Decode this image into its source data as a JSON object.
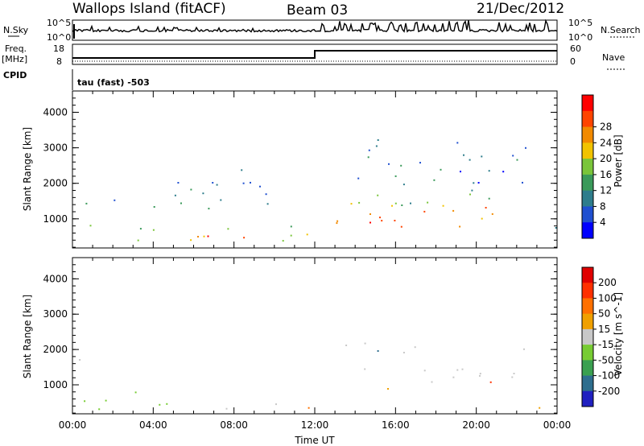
{
  "header": {
    "station": "Wallops Island (fitACF)",
    "beam": "Beam 03",
    "date": "21/Dec/2012"
  },
  "top_panels": {
    "nsky_label": "N.Sky",
    "nsky_ticks": [
      "10^5",
      "10^0"
    ],
    "nsearch_label": "N.Search",
    "nsearch_ticks": [
      "10^5",
      "10^0"
    ],
    "freq_label": "Freq.",
    "freq_unit": "[MHz]",
    "freq_ticks": [
      "18",
      "8"
    ],
    "nave_label": "Nave",
    "nave_ticks": [
      "60",
      "0"
    ],
    "cpid_label": "CPID",
    "cpid_value": "tau (fast) -503"
  },
  "chart_data": [
    {
      "type": "heatmap",
      "name": "power",
      "ylabel": "Slant Range [km]",
      "xlabel": "Time UT",
      "x_ticks": [
        "00:00",
        "04:00",
        "08:00",
        "12:00",
        "16:00",
        "20:00",
        "00:00"
      ],
      "xlim_hours": [
        0,
        24
      ],
      "ylim_km": [
        180,
        4600
      ],
      "y_ticks": [
        1000,
        2000,
        3000,
        4000
      ],
      "colorbar": {
        "label": "Power [dB]",
        "ticks": [
          4,
          8,
          12,
          16,
          20,
          24,
          28
        ],
        "colors": [
          "#0000ff",
          "#2050d0",
          "#2e7d8c",
          "#3a9a5a",
          "#7ac53a",
          "#f2c300",
          "#f28a00",
          "#ff4400",
          "#ff0000"
        ]
      },
      "regions": [
        {
          "t0": 0.0,
          "t1": 1.0,
          "r0": 1300,
          "r1": 1800,
          "level": 12
        },
        {
          "t0": 0.2,
          "t1": 4.0,
          "r0": 300,
          "r1": 900,
          "level": 14
        },
        {
          "t0": 4.0,
          "t1": 11.8,
          "r0": 300,
          "r1": 900,
          "level": 18
        },
        {
          "t0": 6.0,
          "t1": 9.0,
          "r0": 400,
          "r1": 700,
          "level": 26
        },
        {
          "t0": 2.0,
          "t1": 10.0,
          "r0": 1200,
          "r1": 2400,
          "level": 9
        },
        {
          "t0": 13.0,
          "t1": 22.0,
          "r0": 700,
          "r1": 1500,
          "level": 22
        },
        {
          "t0": 14.0,
          "t1": 20.0,
          "r0": 700,
          "r1": 1100,
          "level": 28
        },
        {
          "t0": 13.0,
          "t1": 22.5,
          "r0": 1400,
          "r1": 2000,
          "level": 12
        },
        {
          "t0": 12.0,
          "t1": 22.5,
          "r0": 2000,
          "r1": 3300,
          "level": 7
        },
        {
          "t0": 23.0,
          "t1": 24.0,
          "r0": 250,
          "r1": 900,
          "level": 10
        }
      ]
    },
    {
      "type": "heatmap",
      "name": "velocity",
      "ylabel": "Slant Range [km]",
      "xlabel": "Time UT",
      "x_ticks": [
        "00:00",
        "04:00",
        "08:00",
        "12:00",
        "16:00",
        "20:00",
        "00:00"
      ],
      "xlim_hours": [
        0,
        24
      ],
      "ylim_km": [
        180,
        4600
      ],
      "y_ticks": [
        1000,
        2000,
        3000,
        4000
      ],
      "colorbar": {
        "label": "Velocity [m s^-1]",
        "ticks": [
          200,
          100,
          50,
          15,
          -15,
          -50,
          -100,
          -200
        ],
        "colors": [
          "#2020c0",
          "#2e6e8e",
          "#3aa050",
          "#77cc33",
          "#c8c8c8",
          "#f0a000",
          "#ff7000",
          "#ff3000",
          "#e00000"
        ]
      },
      "regions": [
        {
          "t0": 0.0,
          "t1": 1.0,
          "r0": 1300,
          "r1": 1800,
          "level": 0
        },
        {
          "t0": 0.2,
          "t1": 6.0,
          "r0": 300,
          "r1": 1100,
          "level": 30
        },
        {
          "t0": 6.0,
          "t1": 11.0,
          "r0": 300,
          "r1": 700,
          "level": 0
        },
        {
          "t0": 10.5,
          "t1": 12.0,
          "r0": 200,
          "r1": 600,
          "level": -40
        },
        {
          "t0": 13.0,
          "t1": 22.0,
          "r0": 700,
          "r1": 1500,
          "level": 0
        },
        {
          "t0": 13.0,
          "t1": 22.5,
          "r0": 1400,
          "r1": 2200,
          "level": 0
        },
        {
          "t0": 23.0,
          "t1": 24.0,
          "r0": 250,
          "r1": 900,
          "level": 0
        }
      ]
    }
  ]
}
